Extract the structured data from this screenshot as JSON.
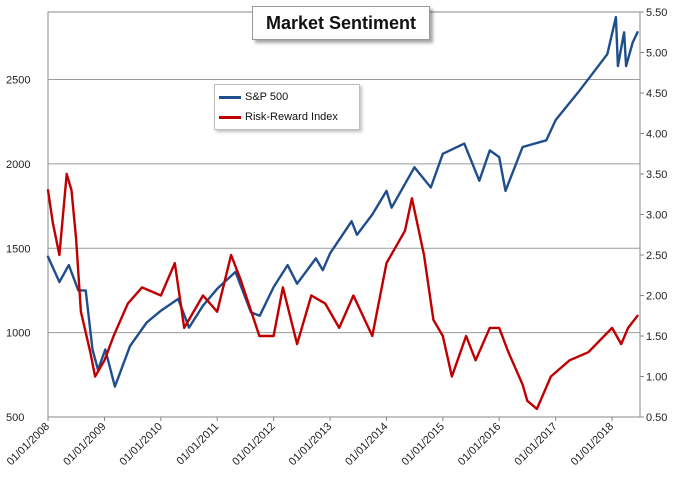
{
  "chart_data": {
    "type": "line",
    "title": "Market Sentiment",
    "xlabel": "",
    "ylabel": "",
    "x_ticks": [
      "01/01/2008",
      "01/01/2009",
      "01/01/2010",
      "01/01/2011",
      "01/01/2012",
      "01/01/2013",
      "01/01/2014",
      "01/01/2015",
      "01/01/2016",
      "01/01/2017",
      "01/01/2018"
    ],
    "y_left": {
      "ticks": [
        "500",
        "1000",
        "1500",
        "2000",
        "2500"
      ],
      "lim": [
        500,
        2900
      ]
    },
    "y_right": {
      "ticks": [
        "0.50",
        "1.00",
        "1.50",
        "2.00",
        "2.50",
        "3.00",
        "3.50",
        "4.00",
        "4.50",
        "5.00",
        "5.50"
      ],
      "lim": [
        0.5,
        5.5
      ]
    },
    "grid": true,
    "legend_position": "top-left",
    "series": [
      {
        "name": "S&P 500",
        "axis": "left",
        "color": "#1f4e8c",
        "x": [
          "2008-01-01",
          "2008-03-15",
          "2008-05-15",
          "2008-07-15",
          "2008-09-01",
          "2008-10-15",
          "2008-11-20",
          "2009-01-06",
          "2009-03-09",
          "2009-06-15",
          "2009-10-01",
          "2010-01-01",
          "2010-04-23",
          "2010-07-02",
          "2010-10-01",
          "2011-01-01",
          "2011-04-29",
          "2011-08-08",
          "2011-10-03",
          "2012-01-01",
          "2012-04-01",
          "2012-06-01",
          "2012-10-01",
          "2012-11-15",
          "2013-01-01",
          "2013-05-20",
          "2013-06-24",
          "2013-10-01",
          "2014-01-01",
          "2014-02-03",
          "2014-07-01",
          "2014-10-15",
          "2015-01-01",
          "2015-05-20",
          "2015-08-25",
          "2015-11-01",
          "2016-01-01",
          "2016-02-11",
          "2016-06-01",
          "2016-11-01",
          "2017-01-01",
          "2017-06-01",
          "2017-12-01",
          "2018-01-26",
          "2018-02-08",
          "2018-03-20",
          "2018-04-02",
          "2018-05-15",
          "2018-06-15"
        ],
        "values": [
          1450,
          1300,
          1400,
          1250,
          1250,
          900,
          780,
          900,
          680,
          920,
          1060,
          1130,
          1200,
          1030,
          1160,
          1260,
          1360,
          1120,
          1100,
          1270,
          1400,
          1290,
          1440,
          1370,
          1470,
          1660,
          1580,
          1700,
          1840,
          1740,
          1980,
          1860,
          2060,
          2120,
          1900,
          2080,
          2040,
          1840,
          2100,
          2140,
          2260,
          2430,
          2650,
          2870,
          2580,
          2780,
          2580,
          2720,
          2780
        ]
      },
      {
        "name": "Risk-Reward Index",
        "axis": "right",
        "color": "#c00000",
        "x": [
          "2008-01-01",
          "2008-02-01",
          "2008-03-15",
          "2008-05-01",
          "2008-06-01",
          "2008-07-01",
          "2008-08-01",
          "2008-10-01",
          "2008-11-01",
          "2009-01-01",
          "2009-03-01",
          "2009-06-01",
          "2009-09-01",
          "2010-01-01",
          "2010-04-01",
          "2010-06-01",
          "2010-10-01",
          "2011-01-01",
          "2011-04-01",
          "2011-06-01",
          "2011-10-01",
          "2012-01-01",
          "2012-03-01",
          "2012-06-01",
          "2012-09-01",
          "2012-12-01",
          "2013-03-01",
          "2013-06-01",
          "2013-10-01",
          "2014-01-01",
          "2014-05-01",
          "2014-06-15",
          "2014-09-01",
          "2014-11-01",
          "2015-01-01",
          "2015-03-01",
          "2015-06-01",
          "2015-08-01",
          "2015-11-01",
          "2016-01-01",
          "2016-03-01",
          "2016-06-01",
          "2016-07-01",
          "2016-09-01",
          "2016-12-01",
          "2017-04-01",
          "2017-08-01",
          "2018-01-01",
          "2018-03-01",
          "2018-04-15",
          "2018-06-15"
        ],
        "values": [
          3.3,
          2.9,
          2.5,
          3.5,
          3.3,
          2.7,
          1.8,
          1.3,
          1.0,
          1.2,
          1.5,
          1.9,
          2.1,
          2.0,
          2.4,
          1.6,
          2.0,
          1.8,
          2.5,
          2.2,
          1.5,
          1.5,
          2.1,
          1.4,
          2.0,
          1.9,
          1.6,
          2.0,
          1.5,
          2.4,
          2.8,
          3.2,
          2.5,
          1.7,
          1.5,
          1.0,
          1.5,
          1.2,
          1.6,
          1.6,
          1.3,
          0.9,
          0.7,
          0.6,
          1.0,
          1.2,
          1.3,
          1.6,
          1.4,
          1.6,
          1.75
        ]
      }
    ]
  }
}
